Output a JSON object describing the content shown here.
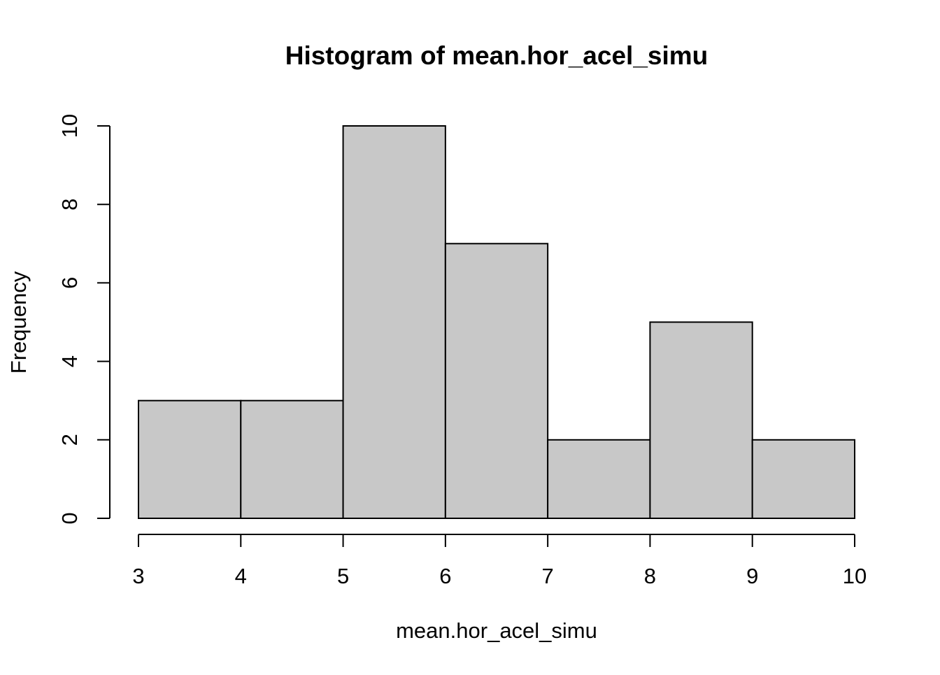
{
  "chart_data": {
    "type": "bar",
    "title": "Histogram of mean.hor_acel_simu",
    "xlabel": "mean.hor_acel_simu",
    "ylabel": "Frequency",
    "bins": [
      {
        "start": 3,
        "end": 4,
        "count": 3
      },
      {
        "start": 4,
        "end": 5,
        "count": 3
      },
      {
        "start": 5,
        "end": 6,
        "count": 10
      },
      {
        "start": 6,
        "end": 7,
        "count": 7
      },
      {
        "start": 7,
        "end": 8,
        "count": 2
      },
      {
        "start": 8,
        "end": 9,
        "count": 5
      },
      {
        "start": 9,
        "end": 10,
        "count": 2
      }
    ],
    "xlim": [
      3,
      10
    ],
    "ylim": [
      0,
      10
    ],
    "x_ticks": [
      "3",
      "4",
      "5",
      "6",
      "7",
      "8",
      "9",
      "10"
    ],
    "y_ticks": [
      "0",
      "2",
      "4",
      "6",
      "8",
      "10"
    ],
    "grid": false,
    "bar_fill_color": "#c8c8c8",
    "bar_stroke_color": "#000000"
  }
}
